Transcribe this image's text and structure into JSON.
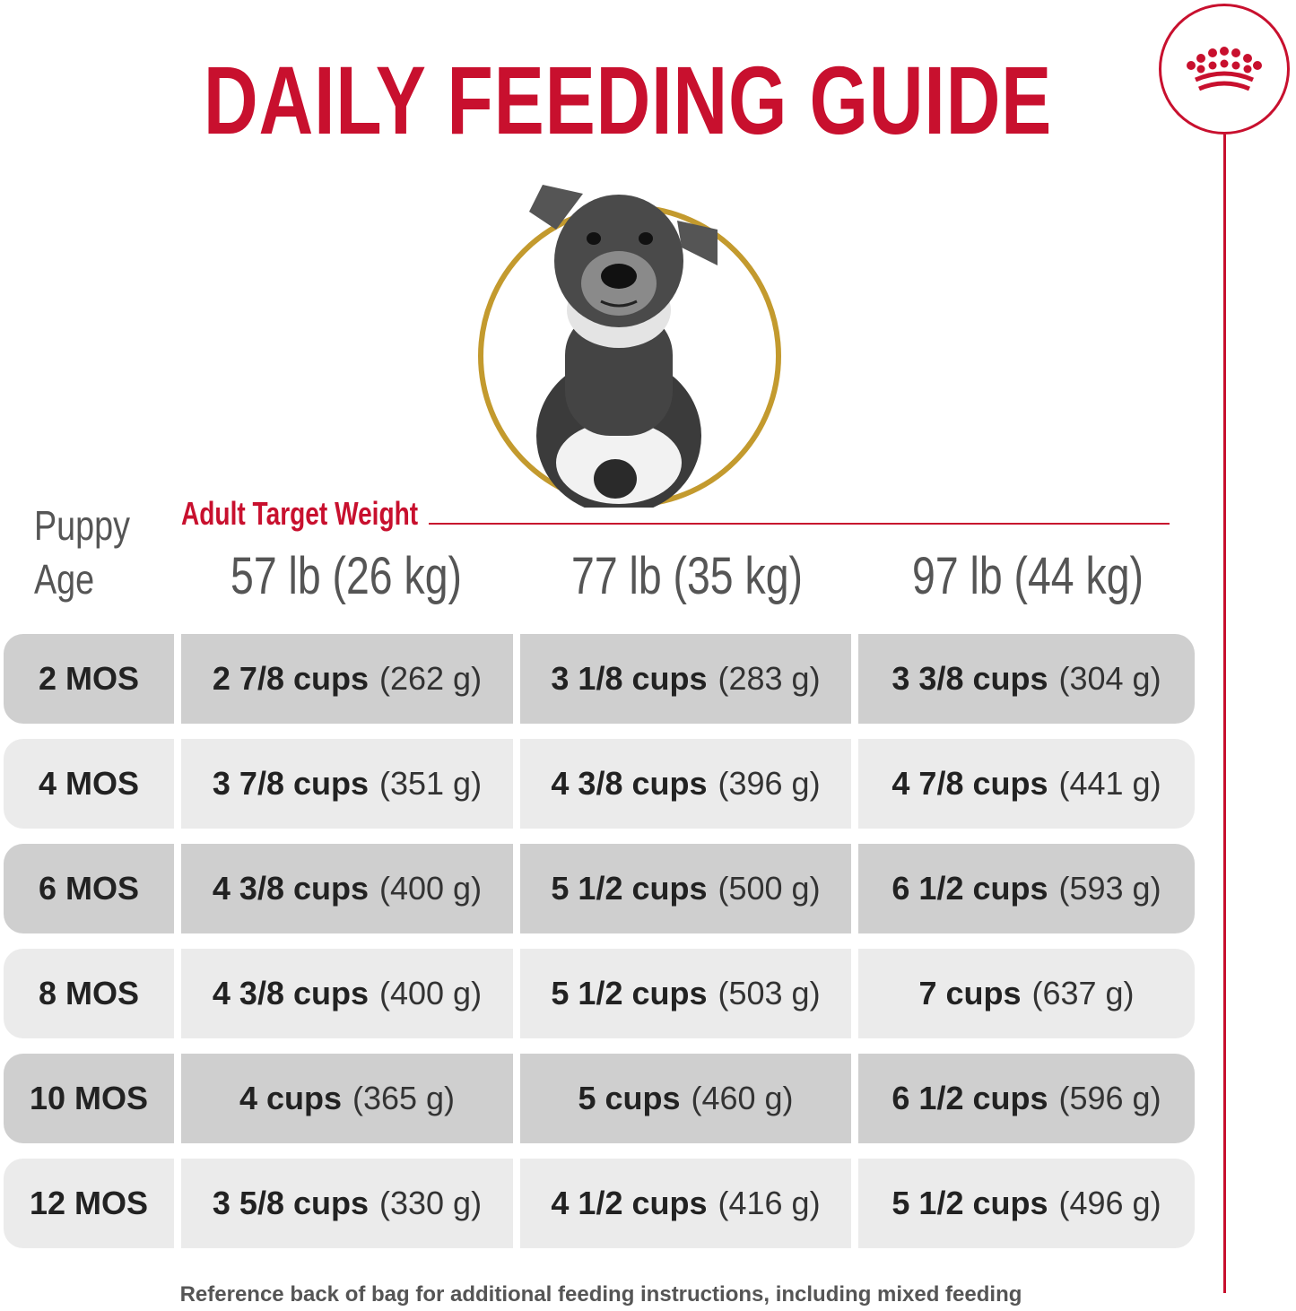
{
  "title": "DAILY FEEDING GUIDE",
  "header": {
    "puppy_age_line1": "Puppy",
    "puppy_age_line2": "Age",
    "target_label": "Adult Target Weight",
    "weights": [
      "57 lb (26 kg)",
      "77 lb (35 kg)",
      "97 lb (44 kg)"
    ]
  },
  "rows": [
    {
      "age": "2 MOS",
      "cells": [
        {
          "amt": "2 7/8 cups",
          "gram": "(262 g)"
        },
        {
          "amt": "3 1/8 cups",
          "gram": "(283 g)"
        },
        {
          "amt": "3 3/8 cups",
          "gram": "(304 g)"
        }
      ]
    },
    {
      "age": "4 MOS",
      "cells": [
        {
          "amt": "3 7/8 cups",
          "gram": "(351 g)"
        },
        {
          "amt": "4 3/8 cups",
          "gram": "(396 g)"
        },
        {
          "amt": "4 7/8 cups",
          "gram": "(441 g)"
        }
      ]
    },
    {
      "age": "6 MOS",
      "cells": [
        {
          "amt": "4 3/8 cups",
          "gram": "(400 g)"
        },
        {
          "amt": "5 1/2 cups",
          "gram": "(500 g)"
        },
        {
          "amt": "6 1/2 cups",
          "gram": "(593 g)"
        }
      ]
    },
    {
      "age": "8 MOS",
      "cells": [
        {
          "amt": "4 3/8 cups",
          "gram": "(400 g)"
        },
        {
          "amt": "5 1/2 cups",
          "gram": "(503 g)"
        },
        {
          "amt": "7 cups",
          "gram": "(637 g)"
        }
      ]
    },
    {
      "age": "10 MOS",
      "cells": [
        {
          "amt": "4 cups",
          "gram": "(365 g)"
        },
        {
          "amt": "5 cups",
          "gram": "(460 g)"
        },
        {
          "amt": "6 1/2 cups",
          "gram": "(596 g)"
        }
      ]
    },
    {
      "age": "12 MOS",
      "cells": [
        {
          "amt": "3 5/8 cups",
          "gram": "(330 g)"
        },
        {
          "amt": "4 1/2 cups",
          "gram": "(416 g)"
        },
        {
          "amt": "5 1/2 cups",
          "gram": "(496 g)"
        }
      ]
    }
  ],
  "footer": "Reference back of bag for additional feeding instructions, including mixed feeding",
  "colors": {
    "brand_red": "#c8102e",
    "ring_gold": "#c39a2e",
    "row_dark": "#cfcfcf",
    "row_light": "#ebebeb"
  },
  "icons": {
    "logo": "royal-crown-icon",
    "photo": "german-shepherd-puppy-photo"
  }
}
